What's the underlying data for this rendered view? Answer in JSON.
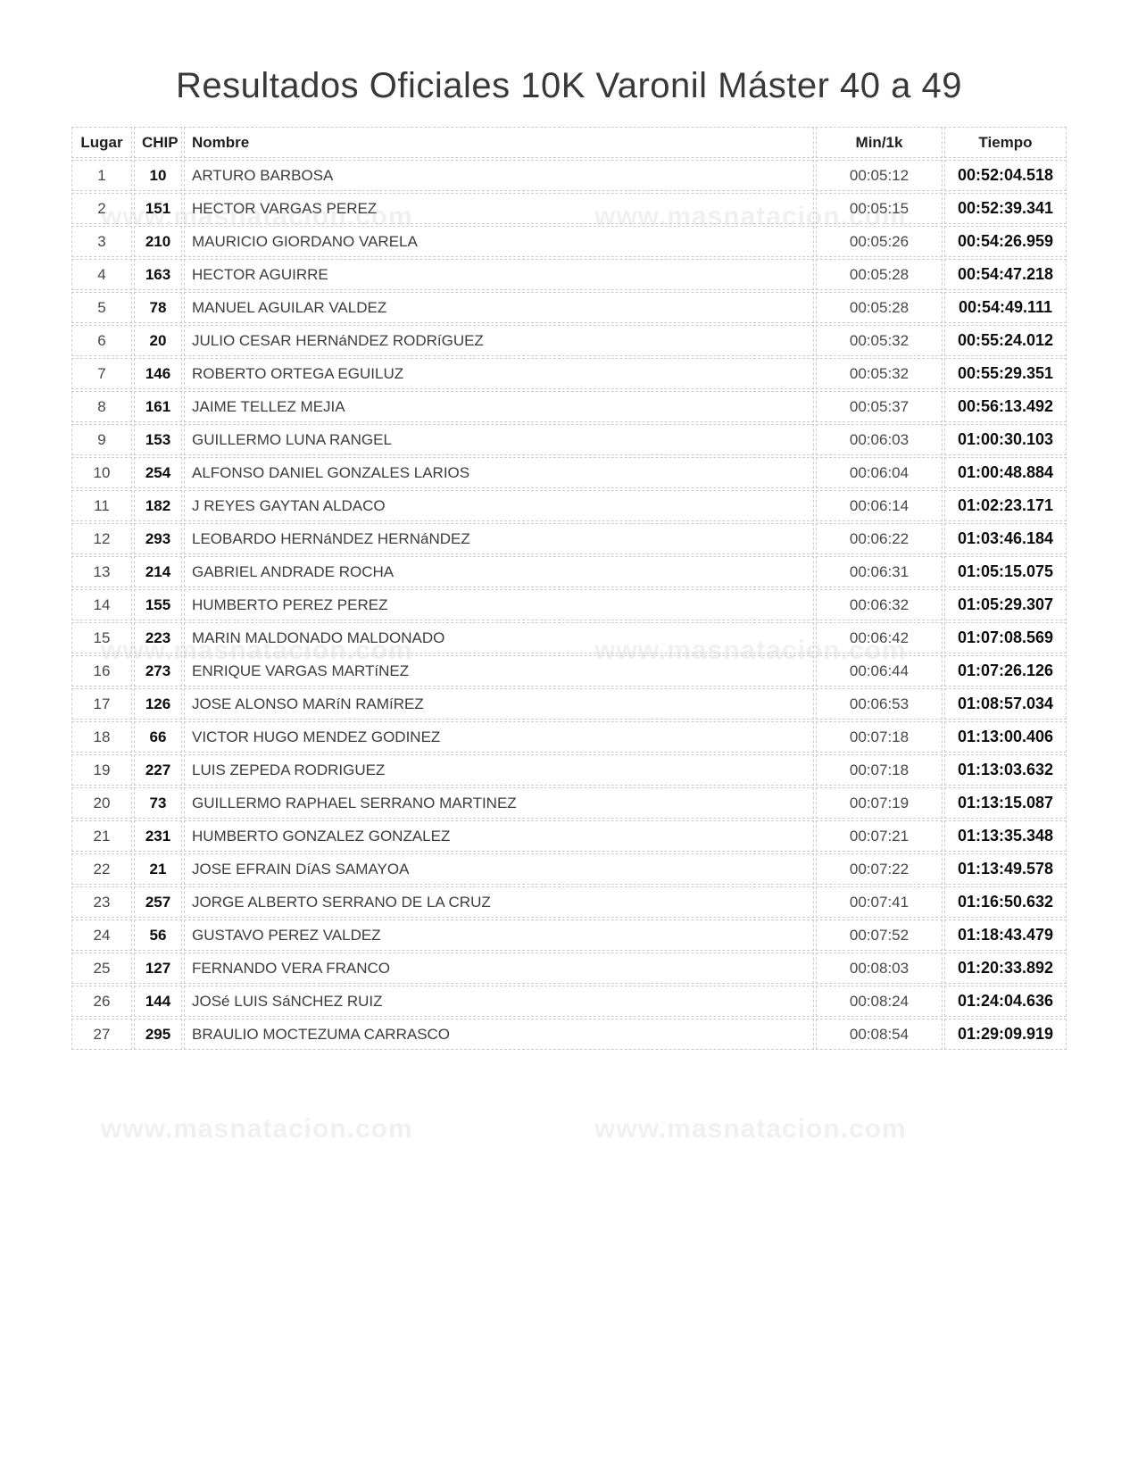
{
  "page": {
    "title": "Resultados Oficiales 10K Varonil Máster 40 a 49",
    "watermark": "www.masnatacion.com"
  },
  "table": {
    "headers": [
      "Lugar",
      "CHIP",
      "Nombre",
      "Min/1k",
      "Tiempo"
    ],
    "rows": [
      {
        "lugar": "1",
        "chip": "10",
        "nombre": "ARTURO BARBOSA",
        "min1k": "00:05:12",
        "tiempo": "00:52:04.518"
      },
      {
        "lugar": "2",
        "chip": "151",
        "nombre": "HECTOR VARGAS PEREZ",
        "min1k": "00:05:15",
        "tiempo": "00:52:39.341"
      },
      {
        "lugar": "3",
        "chip": "210",
        "nombre": "MAURICIO GIORDANO VARELA",
        "min1k": "00:05:26",
        "tiempo": "00:54:26.959"
      },
      {
        "lugar": "4",
        "chip": "163",
        "nombre": "HECTOR AGUIRRE",
        "min1k": "00:05:28",
        "tiempo": "00:54:47.218"
      },
      {
        "lugar": "5",
        "chip": "78",
        "nombre": "MANUEL AGUILAR VALDEZ",
        "min1k": "00:05:28",
        "tiempo": "00:54:49.111"
      },
      {
        "lugar": "6",
        "chip": "20",
        "nombre": "JULIO CESAR HERNáNDEZ RODRíGUEZ",
        "min1k": "00:05:32",
        "tiempo": "00:55:24.012"
      },
      {
        "lugar": "7",
        "chip": "146",
        "nombre": "ROBERTO ORTEGA EGUILUZ",
        "min1k": "00:05:32",
        "tiempo": "00:55:29.351"
      },
      {
        "lugar": "8",
        "chip": "161",
        "nombre": "JAIME TELLEZ MEJIA",
        "min1k": "00:05:37",
        "tiempo": "00:56:13.492"
      },
      {
        "lugar": "9",
        "chip": "153",
        "nombre": "GUILLERMO LUNA RANGEL",
        "min1k": "00:06:03",
        "tiempo": "01:00:30.103"
      },
      {
        "lugar": "10",
        "chip": "254",
        "nombre": "ALFONSO DANIEL GONZALES LARIOS",
        "min1k": "00:06:04",
        "tiempo": "01:00:48.884"
      },
      {
        "lugar": "11",
        "chip": "182",
        "nombre": "J REYES GAYTAN ALDACO",
        "min1k": "00:06:14",
        "tiempo": "01:02:23.171"
      },
      {
        "lugar": "12",
        "chip": "293",
        "nombre": "LEOBARDO HERNáNDEZ HERNáNDEZ",
        "min1k": "00:06:22",
        "tiempo": "01:03:46.184"
      },
      {
        "lugar": "13",
        "chip": "214",
        "nombre": "GABRIEL ANDRADE ROCHA",
        "min1k": "00:06:31",
        "tiempo": "01:05:15.075"
      },
      {
        "lugar": "14",
        "chip": "155",
        "nombre": "HUMBERTO PEREZ PEREZ",
        "min1k": "00:06:32",
        "tiempo": "01:05:29.307"
      },
      {
        "lugar": "15",
        "chip": "223",
        "nombre": "MARIN MALDONADO MALDONADO",
        "min1k": "00:06:42",
        "tiempo": "01:07:08.569"
      },
      {
        "lugar": "16",
        "chip": "273",
        "nombre": "ENRIQUE VARGAS MARTíNEZ",
        "min1k": "00:06:44",
        "tiempo": "01:07:26.126"
      },
      {
        "lugar": "17",
        "chip": "126",
        "nombre": "JOSE ALONSO MARíN RAMíREZ",
        "min1k": "00:06:53",
        "tiempo": "01:08:57.034"
      },
      {
        "lugar": "18",
        "chip": "66",
        "nombre": "VICTOR HUGO MENDEZ GODINEZ",
        "min1k": "00:07:18",
        "tiempo": "01:13:00.406"
      },
      {
        "lugar": "19",
        "chip": "227",
        "nombre": "LUIS ZEPEDA RODRIGUEZ",
        "min1k": "00:07:18",
        "tiempo": "01:13:03.632"
      },
      {
        "lugar": "20",
        "chip": "73",
        "nombre": "GUILLERMO RAPHAEL SERRANO MARTINEZ",
        "min1k": "00:07:19",
        "tiempo": "01:13:15.087"
      },
      {
        "lugar": "21",
        "chip": "231",
        "nombre": "HUMBERTO GONZALEZ GONZALEZ",
        "min1k": "00:07:21",
        "tiempo": "01:13:35.348"
      },
      {
        "lugar": "22",
        "chip": "21",
        "nombre": "JOSE EFRAIN DíAS SAMAYOA",
        "min1k": "00:07:22",
        "tiempo": "01:13:49.578"
      },
      {
        "lugar": "23",
        "chip": "257",
        "nombre": "JORGE ALBERTO SERRANO DE LA CRUZ",
        "min1k": "00:07:41",
        "tiempo": "01:16:50.632"
      },
      {
        "lugar": "24",
        "chip": "56",
        "nombre": "GUSTAVO PEREZ VALDEZ",
        "min1k": "00:07:52",
        "tiempo": "01:18:43.479"
      },
      {
        "lugar": "25",
        "chip": "127",
        "nombre": "FERNANDO VERA FRANCO",
        "min1k": "00:08:03",
        "tiempo": "01:20:33.892"
      },
      {
        "lugar": "26",
        "chip": "144",
        "nombre": "JOSé LUIS SáNCHEZ RUIZ",
        "min1k": "00:08:24",
        "tiempo": "01:24:04.636"
      },
      {
        "lugar": "27",
        "chip": "295",
        "nombre": "BRAULIO MOCTEZUMA CARRASCO",
        "min1k": "00:08:54",
        "tiempo": "01:29:09.919"
      }
    ]
  }
}
